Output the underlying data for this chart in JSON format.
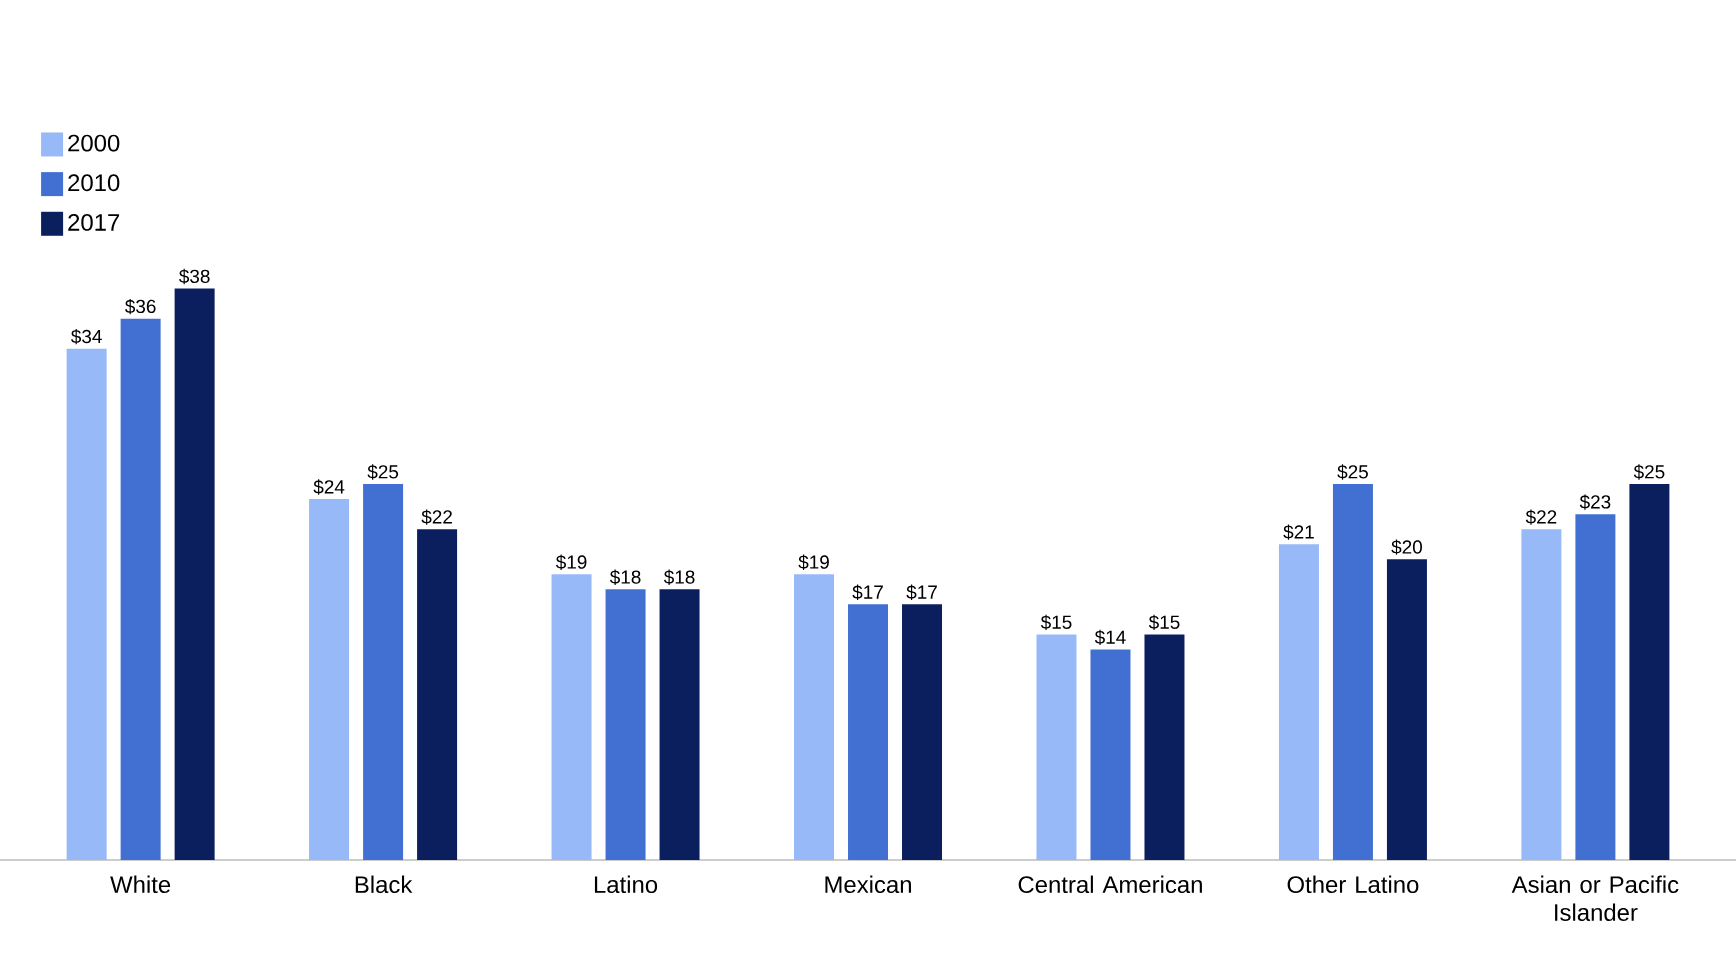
{
  "chart_data": {
    "type": "bar",
    "categories": [
      "White",
      "Black",
      "Latino",
      "Mexican",
      "Central American",
      "Other Latino",
      "Asian or Pacific Islander"
    ],
    "series": [
      {
        "name": "2000",
        "color": "#97b9f7",
        "values": [
          34,
          24,
          19,
          19,
          15,
          21,
          22
        ],
        "value_labels": [
          "$34",
          "$24",
          "$19",
          "$19",
          "$15",
          "$21",
          "$22"
        ]
      },
      {
        "name": "2010",
        "color": "#4170d2",
        "values": [
          36,
          25,
          18,
          17,
          14,
          25,
          23
        ],
        "value_labels": [
          "$36",
          "$25",
          "$18",
          "$17",
          "$14",
          "$25",
          "$23"
        ]
      },
      {
        "name": "2017",
        "color": "#0b1f5e",
        "values": [
          38,
          22,
          18,
          17,
          15,
          20,
          25
        ],
        "value_labels": [
          "$38",
          "$22",
          "$18",
          "$17",
          "$15",
          "$20",
          "$25"
        ]
      }
    ],
    "legend": "top left",
    "tick_labels": "x"
  }
}
